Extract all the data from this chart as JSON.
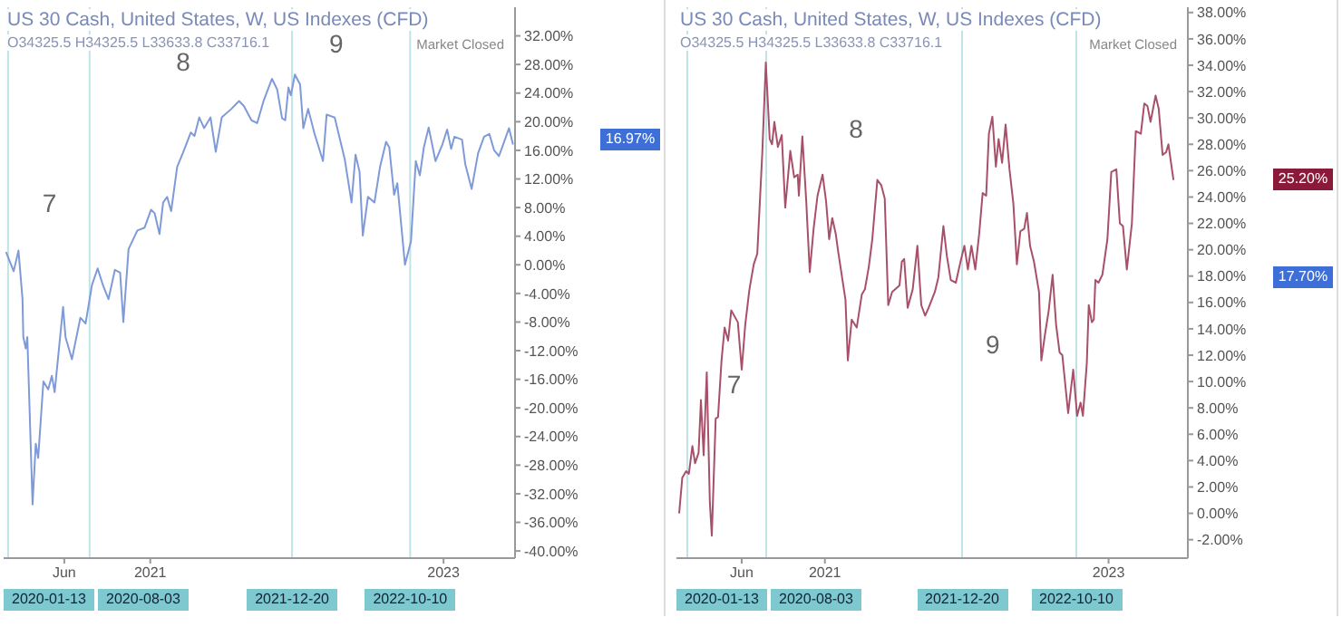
{
  "chart_data": [
    {
      "type": "line",
      "title": "US 30 Cash, United States, W, US Indexes (CFD)",
      "annotations": [
        "O34325.5 H34325.5 L33633.8 C33716.1",
        "Market Closed",
        "7",
        "8",
        "9",
        "16.97%"
      ],
      "x": [
        "2020-01-08",
        "2020-01-27",
        "2020-02-08",
        "2020-02-18",
        "2020-02-20",
        "2020-02-26",
        "2020-03-01",
        "2020-03-14",
        "2020-03-22",
        "2020-03-28",
        "2020-04-10",
        "2020-04-22",
        "2020-05-01",
        "2020-05-08",
        "2020-05-29",
        "2020-06-04",
        "2020-06-20",
        "2020-07-11",
        "2020-07-24",
        "2020-08-09",
        "2020-08-23",
        "2020-09-05",
        "2020-09-19",
        "2020-10-05",
        "2020-10-18",
        "2020-10-26",
        "2020-11-08",
        "2020-11-30",
        "2020-12-18",
        "2021-01-03",
        "2021-01-12",
        "2021-01-24",
        "2021-02-02",
        "2021-02-12",
        "2021-02-22",
        "2021-03-09",
        "2021-03-23",
        "2021-04-12",
        "2021-04-21",
        "2021-05-03",
        "2021-05-15",
        "2021-05-31",
        "2021-06-13",
        "2021-06-28",
        "2021-07-22",
        "2021-08-10",
        "2021-08-22",
        "2021-09-10",
        "2021-09-24",
        "2021-10-10",
        "2021-10-31",
        "2021-11-13",
        "2021-11-25",
        "2021-12-03",
        "2021-12-11",
        "2021-12-17",
        "2021-12-27",
        "2022-01-09",
        "2022-01-17",
        "2022-01-29",
        "2022-02-14",
        "2022-03-07",
        "2022-03-16",
        "2022-04-05",
        "2022-04-30",
        "2022-05-17",
        "2022-05-27",
        "2022-06-06",
        "2022-06-14",
        "2022-06-27",
        "2022-07-13",
        "2022-07-27",
        "2022-08-11",
        "2022-08-19",
        "2022-08-31",
        "2022-09-08",
        "2022-09-27",
        "2022-10-12",
        "2022-10-24",
        "2022-11-03",
        "2022-11-13",
        "2022-11-25",
        "2022-12-12",
        "2022-12-29",
        "2023-01-10",
        "2023-01-20",
        "2023-01-28",
        "2023-02-16",
        "2023-02-24",
        "2023-03-12",
        "2023-03-28",
        "2023-04-12",
        "2023-04-25",
        "2023-05-07",
        "2023-05-19",
        "2023-06-01",
        "2023-06-13",
        "2023-06-23"
      ],
      "series": [
        {
          "color": "#7f9ad8",
          "values": [
            1.8,
            -0.9,
            2,
            -4.8,
            -10.1,
            -11.7,
            -10.1,
            -33.5,
            -25,
            -27,
            -16.3,
            -17.4,
            -15.5,
            -17.8,
            -5.9,
            -10.1,
            -13.2,
            -7.4,
            -8.2,
            -2.8,
            -0.5,
            -2.8,
            -4.8,
            -0.7,
            -1.1,
            -8,
            2.2,
            4.8,
            5.2,
            7.7,
            7.2,
            4.3,
            8.7,
            9.5,
            7.5,
            13.7,
            15.6,
            18.5,
            18,
            20.6,
            19.1,
            20.6,
            15.8,
            20.6,
            21.8,
            22.9,
            22.2,
            20.2,
            19.8,
            22.9,
            26,
            24.5,
            20.5,
            20.2,
            24.8,
            23.7,
            26.6,
            25.2,
            19.1,
            21.8,
            18.3,
            14.5,
            21,
            20.6,
            14.8,
            8.7,
            15.4,
            13,
            4.1,
            9.5,
            8.7,
            13.7,
            17.2,
            16.4,
            9.8,
            11.4,
            0,
            3.3,
            14.5,
            12.5,
            16.4,
            19.2,
            14.5,
            16.8,
            18.9,
            16.2,
            17.9,
            17.5,
            14.1,
            10.6,
            15.6,
            17.9,
            18.3,
            16,
            15.2,
            17.2,
            19.1,
            16.8
          ]
        }
      ],
      "xlim": [
        "2020-01-02",
        "2023-06-28"
      ],
      "xticks": [
        {
          "value": "2020-06-01",
          "label": "Jun"
        },
        {
          "value": "2021-01-01",
          "label": "2021"
        },
        {
          "value": "2023-01-01",
          "label": "2023"
        }
      ],
      "ylim": [
        -41,
        36
      ],
      "yticks": [
        {
          "value": -40,
          "label": "-40.00%"
        },
        {
          "value": -36,
          "label": "-36.00%"
        },
        {
          "value": -32,
          "label": "-32.00%"
        },
        {
          "value": -28,
          "label": "-28.00%"
        },
        {
          "value": -24,
          "label": "-24.00%"
        },
        {
          "value": -20,
          "label": "-20.00%"
        },
        {
          "value": -16,
          "label": "-16.00%"
        },
        {
          "value": -12,
          "label": "-12.00%"
        },
        {
          "value": -8,
          "label": "-8.00%"
        },
        {
          "value": -4,
          "label": "-4.00%"
        },
        {
          "value": 0,
          "label": "0.00%"
        },
        {
          "value": 4,
          "label": "4.00%"
        },
        {
          "value": 8,
          "label": "8.00%"
        },
        {
          "value": 12,
          "label": "12.00%"
        },
        {
          "value": 16,
          "label": "16.00%"
        },
        {
          "value": 20,
          "label": "20.00%"
        },
        {
          "value": 24,
          "label": "24.00%"
        },
        {
          "value": 28,
          "label": "28.00%"
        },
        {
          "value": 32,
          "label": "32.00%"
        }
      ],
      "ref_lines": [
        {
          "axis": "x",
          "value": "2020-01-13",
          "label": "2020-01-13",
          "color": "#bfe3e6"
        },
        {
          "axis": "x",
          "value": "2020-08-03",
          "label": "2020-08-03",
          "color": "#bfe3e6"
        },
        {
          "axis": "x",
          "value": "2021-12-20",
          "label": "2021-12-20",
          "color": "#bfe3e6"
        },
        {
          "axis": "x",
          "value": "2022-10-10",
          "label": "2022-10-10",
          "color": "#bfe3e6"
        }
      ]
    },
    {
      "type": "line",
      "title": "US 30 Cash, United States, W, US Indexes (CFD)",
      "annotations": [
        "O34325.5 H34325.5 L33633.8 C33716.1",
        "Market Closed",
        "7",
        "8",
        "9",
        "25.20%",
        "17.70%"
      ],
      "x": [
        "2019-12-23",
        "2019-12-31",
        "2020-01-10",
        "2020-01-17",
        "2020-01-26",
        "2020-02-02",
        "2020-02-11",
        "2020-02-17",
        "2020-02-24",
        "2020-03-03",
        "2020-03-11",
        "2020-03-16",
        "2020-03-26",
        "2020-04-01",
        "2020-04-10",
        "2020-04-18",
        "2020-04-27",
        "2020-05-05",
        "2020-05-22",
        "2020-06-01",
        "2020-06-10",
        "2020-06-20",
        "2020-06-22",
        "2020-07-02",
        "2020-07-11",
        "2020-07-24",
        "2020-08-02",
        "2020-08-12",
        "2020-08-18",
        "2020-08-24",
        "2020-09-02",
        "2020-09-12",
        "2020-09-21",
        "2020-10-04",
        "2020-10-14",
        "2020-10-23",
        "2020-10-26",
        "2020-11-04",
        "2020-11-14",
        "2020-11-23",
        "2020-12-03",
        "2020-12-13",
        "2020-12-26",
        "2021-01-04",
        "2021-01-12",
        "2021-01-20",
        "2021-01-29",
        "2021-02-04",
        "2021-02-23",
        "2021-03-01",
        "2021-03-11",
        "2021-03-24",
        "2021-04-06",
        "2021-04-14",
        "2021-04-24",
        "2021-05-03",
        "2021-05-16",
        "2021-05-26",
        "2021-06-04",
        "2021-06-13",
        "2021-06-23",
        "2021-07-12",
        "2021-07-18",
        "2021-07-24",
        "2021-08-02",
        "2021-08-15",
        "2021-08-27",
        "2021-09-06",
        "2021-09-16",
        "2021-09-25",
        "2021-10-11",
        "2021-10-20",
        "2021-11-02",
        "2021-11-11",
        "2021-11-21",
        "2021-12-04",
        "2021-12-16",
        "2021-12-26",
        "2022-01-04",
        "2022-01-13",
        "2022-01-23",
        "2022-02-02",
        "2022-02-11",
        "2022-02-20",
        "2022-02-27",
        "2022-03-08",
        "2022-03-17",
        "2022-03-24",
        "2022-04-02",
        "2022-04-11",
        "2022-04-21",
        "2022-05-01",
        "2022-05-10",
        "2022-05-19",
        "2022-05-29",
        "2022-06-05",
        "2022-06-13",
        "2022-06-23",
        "2022-07-06",
        "2022-07-12",
        "2022-07-21",
        "2022-07-31",
        "2022-08-10",
        "2022-08-19",
        "2022-08-28",
        "2022-09-04",
        "2022-09-19",
        "2022-10-02",
        "2022-10-12",
        "2022-10-21",
        "2022-10-27",
        "2022-11-06",
        "2022-11-11",
        "2022-11-19",
        "2022-11-24",
        "2022-11-28",
        "2022-12-06",
        "2022-12-16",
        "2022-12-29",
        "2023-01-08",
        "2023-01-21",
        "2023-01-30",
        "2023-02-07",
        "2023-02-17",
        "2023-03-02",
        "2023-03-12",
        "2023-03-25",
        "2023-04-03",
        "2023-04-11",
        "2023-04-19",
        "2023-05-02",
        "2023-05-10",
        "2023-05-20",
        "2023-05-29",
        "2023-06-04",
        "2023-06-17"
      ],
      "series": [
        {
          "color": "#a8506a",
          "values": [
            0,
            2.7,
            3.2,
            3,
            5.1,
            3.8,
            4.6,
            8.6,
            4.4,
            10.7,
            0.8,
            -1.7,
            7.2,
            7.3,
            11.6,
            14.1,
            13.1,
            15.4,
            14.5,
            10.9,
            14.3,
            16.8,
            17.2,
            18.9,
            19.7,
            27.4,
            34.2,
            28.4,
            28,
            29.7,
            27.8,
            28.7,
            23.2,
            27.5,
            25.5,
            25.7,
            24.1,
            28.6,
            23.7,
            18.3,
            21.6,
            24.1,
            25.7,
            23.7,
            20.8,
            22.4,
            21.2,
            19.9,
            16.2,
            11.6,
            14.7,
            14.1,
            16.6,
            17,
            18.7,
            20.8,
            25.3,
            24.9,
            23.9,
            15.8,
            16.8,
            17.3,
            19.1,
            19.3,
            15.6,
            17,
            20.3,
            15.8,
            15,
            15.6,
            16.8,
            17.9,
            21.8,
            19.5,
            17.7,
            17.5,
            19.1,
            20.3,
            18.5,
            20.3,
            18.5,
            21.2,
            24.3,
            24.1,
            28.8,
            30.1,
            26.3,
            28.4,
            26.6,
            29.5,
            26.1,
            23.5,
            18.9,
            21.4,
            21.6,
            22.8,
            20.3,
            19.1,
            16.8,
            11.6,
            13.5,
            15.4,
            18.1,
            14.3,
            12.2,
            12,
            7.6,
            10.9,
            7.4,
            8.4,
            7.4,
            11.4,
            15.8,
            14.5,
            14.7,
            17.7,
            17.5,
            18.1,
            20.8,
            25.9,
            26.1,
            22,
            21.8,
            18.5,
            22,
            29,
            28.8,
            31.1,
            30.9,
            29.7,
            31.7,
            30.7,
            27.2,
            27.4,
            28,
            25.3
          ]
        }
      ],
      "xlim": [
        "2019-12-16",
        "2023-07-24"
      ],
      "xticks": [
        {
          "value": "2020-06-01",
          "label": "Jun"
        },
        {
          "value": "2021-01-01",
          "label": "2021"
        },
        {
          "value": "2023-01-01",
          "label": "2023"
        }
      ],
      "ylim": [
        -3.4,
        38.4
      ],
      "yticks": [
        {
          "value": -2,
          "label": "-2.00%"
        },
        {
          "value": 0,
          "label": "0.00%"
        },
        {
          "value": 2,
          "label": "2.00%"
        },
        {
          "value": 4,
          "label": "4.00%"
        },
        {
          "value": 6,
          "label": "6.00%"
        },
        {
          "value": 8,
          "label": "8.00%"
        },
        {
          "value": 10,
          "label": "10.00%"
        },
        {
          "value": 12,
          "label": "12.00%"
        },
        {
          "value": 14,
          "label": "14.00%"
        },
        {
          "value": 16,
          "label": "16.00%"
        },
        {
          "value": 18,
          "label": "18.00%"
        },
        {
          "value": 20,
          "label": "20.00%"
        },
        {
          "value": 22,
          "label": "22.00%"
        },
        {
          "value": 24,
          "label": "24.00%"
        },
        {
          "value": 26,
          "label": "26.00%"
        },
        {
          "value": 28,
          "label": "28.00%"
        },
        {
          "value": 30,
          "label": "30.00%"
        },
        {
          "value": 32,
          "label": "32.00%"
        },
        {
          "value": 34,
          "label": "34.00%"
        },
        {
          "value": 36,
          "label": "36.00%"
        },
        {
          "value": 38,
          "label": "38.00%"
        }
      ],
      "ref_lines": [
        {
          "axis": "x",
          "value": "2020-01-13",
          "label": "2020-01-13",
          "color": "#bfe3e6"
        },
        {
          "axis": "x",
          "value": "2020-08-03",
          "label": "2020-08-03",
          "color": "#bfe3e6"
        },
        {
          "axis": "x",
          "value": "2021-12-20",
          "label": "2021-12-20",
          "color": "#bfe3e6"
        },
        {
          "axis": "x",
          "value": "2022-10-10",
          "label": "2022-10-10",
          "color": "#bfe3e6"
        }
      ]
    }
  ]
}
